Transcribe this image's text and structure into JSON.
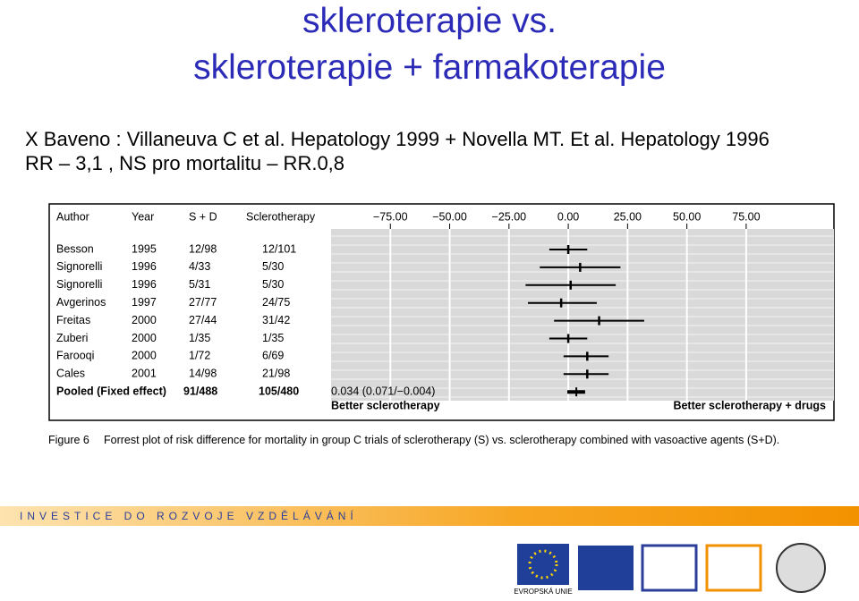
{
  "title_lines": [
    "skleroterapie vs.",
    "skleroterapie + farmakoterapie"
  ],
  "subtitle_lines": [
    "X Baveno : Villaneuva C et al. Hepatology 1999 + Novella MT. Et al. Hepatology 1996",
    "RR – 3,1 ,  NS pro mortalitu – RR.0,8"
  ],
  "chart_data": {
    "type": "forest",
    "columns": [
      "Author",
      "Year",
      "S + D",
      "Sclerotherapy"
    ],
    "rows": [
      [
        "Besson",
        "1995",
        "12/98",
        "12/101"
      ],
      [
        "Signorelli",
        "1996",
        "4/33",
        "5/30"
      ],
      [
        "Signorelli",
        "1996",
        "5/31",
        "5/30"
      ],
      [
        "Avgerinos",
        "1997",
        "27/77",
        "24/75"
      ],
      [
        "Freitas",
        "2000",
        "27/44",
        "31/42"
      ],
      [
        "Zuberi",
        "2000",
        "1/35",
        "1/35"
      ],
      [
        "Farooqi",
        "2000",
        "1/72",
        "6/69"
      ],
      [
        "Cales",
        "2001",
        "14/98",
        "21/98"
      ]
    ],
    "values": [
      0,
      5,
      1,
      -3,
      13,
      0,
      8,
      8
    ],
    "lower": [
      -8,
      -12,
      -18,
      -17,
      -6,
      -8,
      -2,
      -2
    ],
    "upper": [
      8,
      22,
      20,
      12,
      32,
      8,
      17,
      17
    ],
    "pooled": {
      "author": "Pooled (Fixed effect)",
      "sd": "91/488",
      "sclero": "105/480",
      "value": 3.4,
      "lower": -0.4,
      "upper": 7.1,
      "estimate_label": "0.034 (0.071/−0.004)"
    },
    "xlim": [
      -100,
      112
    ],
    "xticks": [
      {
        "value": -75,
        "label": "−75.00"
      },
      {
        "value": -50,
        "label": "−50.00"
      },
      {
        "value": -25,
        "label": "−25.00"
      },
      {
        "value": 0,
        "label": "0.00"
      },
      {
        "value": 25,
        "label": "25.00"
      },
      {
        "value": 50,
        "label": "50.00"
      },
      {
        "value": 75,
        "label": "75.00"
      }
    ],
    "grid": true,
    "left_label": "Better sclerotherapy",
    "right_label": "Better sclerotherapy + drugs",
    "color": "#000000"
  },
  "caption": {
    "label": "Figure 6",
    "text": "Forrest plot of risk difference for mortality in group C trials of sclerotherapy (S) vs. sclerotherapy combined with vasoactive agents (S+D)."
  },
  "footer": {
    "band": "INVESTICE DO ROZVOJE VZDĚLÁVÁNÍ",
    "eu": "EVROPSKÁ UNIE"
  }
}
